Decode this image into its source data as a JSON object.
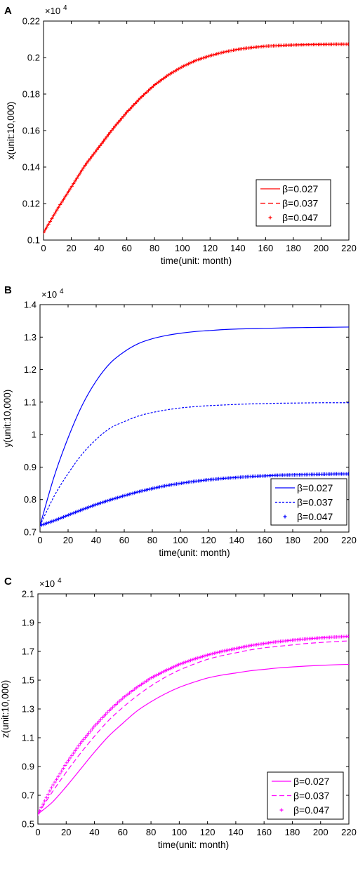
{
  "chart_data": [
    {
      "panel_label": "A",
      "type": "line",
      "exponent": "×10",
      "exponent_power": "4",
      "xlabel": "time(unit: month)",
      "ylabel": "x(unit:10,000)",
      "xlim": [
        0,
        220
      ],
      "ylim": [
        0.1,
        0.22
      ],
      "xticks": [
        0,
        20,
        40,
        60,
        80,
        100,
        120,
        140,
        160,
        180,
        200,
        220
      ],
      "yticks": [
        0.1,
        0.12,
        0.14,
        0.16,
        0.18,
        0.2,
        0.22
      ],
      "legend_position": "bottom-right",
      "color": "#ff0000",
      "x": [
        0,
        10,
        20,
        30,
        40,
        50,
        60,
        70,
        80,
        90,
        100,
        110,
        120,
        130,
        140,
        150,
        160,
        170,
        180,
        190,
        200,
        210,
        220
      ],
      "series": [
        {
          "name": "β=0.027",
          "style": "solid",
          "values": [
            0.104,
            0.117,
            0.129,
            0.141,
            0.151,
            0.161,
            0.17,
            0.178,
            0.185,
            0.1905,
            0.195,
            0.1985,
            0.201,
            0.203,
            0.2045,
            0.2055,
            0.2062,
            0.2066,
            0.2069,
            0.2071,
            0.2072,
            0.2073,
            0.2073
          ]
        },
        {
          "name": "β=0.037",
          "style": "dashed",
          "values": [
            0.104,
            0.117,
            0.129,
            0.141,
            0.151,
            0.161,
            0.17,
            0.178,
            0.185,
            0.1905,
            0.195,
            0.1985,
            0.201,
            0.203,
            0.2045,
            0.2055,
            0.2062,
            0.2066,
            0.2069,
            0.2071,
            0.2072,
            0.2073,
            0.2073
          ]
        },
        {
          "name": "β=0.047",
          "style": "plus",
          "values": [
            0.104,
            0.117,
            0.129,
            0.141,
            0.151,
            0.161,
            0.17,
            0.178,
            0.185,
            0.1905,
            0.195,
            0.1985,
            0.201,
            0.203,
            0.2045,
            0.2055,
            0.2062,
            0.2066,
            0.2069,
            0.2071,
            0.2072,
            0.2073,
            0.2073
          ]
        }
      ]
    },
    {
      "panel_label": "B",
      "type": "line",
      "exponent": "×10",
      "exponent_power": "4",
      "xlabel": "time(unit: month)",
      "ylabel": "y(unit:10,000)",
      "xlim": [
        0,
        220
      ],
      "ylim": [
        0.7,
        1.4
      ],
      "xticks": [
        0,
        20,
        40,
        60,
        80,
        100,
        120,
        140,
        160,
        180,
        200,
        220
      ],
      "yticks": [
        0.7,
        0.8,
        0.9,
        1,
        1.1,
        1.2,
        1.3,
        1.4
      ],
      "legend_position": "bottom-right",
      "color": "#0000ff",
      "x": [
        0,
        10,
        20,
        30,
        40,
        50,
        60,
        70,
        80,
        90,
        100,
        110,
        120,
        130,
        140,
        150,
        160,
        170,
        180,
        190,
        200,
        210,
        220
      ],
      "series": [
        {
          "name": "β=0.027",
          "style": "solid",
          "values": [
            0.72,
            0.87,
            0.99,
            1.09,
            1.165,
            1.22,
            1.255,
            1.28,
            1.295,
            1.305,
            1.312,
            1.317,
            1.32,
            1.323,
            1.325,
            1.326,
            1.327,
            1.328,
            1.329,
            1.3295,
            1.33,
            1.3305,
            1.331
          ]
        },
        {
          "name": "β=0.037",
          "style": "dashed",
          "values": [
            0.72,
            0.81,
            0.88,
            0.94,
            0.985,
            1.02,
            1.04,
            1.057,
            1.068,
            1.076,
            1.082,
            1.086,
            1.089,
            1.091,
            1.093,
            1.0945,
            1.0955,
            1.0965,
            1.097,
            1.0975,
            1.098,
            1.098,
            1.098
          ]
        },
        {
          "name": "β=0.047",
          "style": "plus",
          "values": [
            0.72,
            0.735,
            0.752,
            0.769,
            0.785,
            0.799,
            0.812,
            0.824,
            0.834,
            0.843,
            0.85,
            0.856,
            0.861,
            0.865,
            0.868,
            0.871,
            0.873,
            0.875,
            0.876,
            0.877,
            0.878,
            0.879,
            0.879
          ]
        }
      ]
    },
    {
      "panel_label": "C",
      "type": "line",
      "exponent": "×10",
      "exponent_power": "4",
      "xlabel": "time(unit: month)",
      "ylabel": "z(unit:10,000)",
      "xlim": [
        0,
        220
      ],
      "ylim": [
        0.5,
        2.1
      ],
      "xticks": [
        0,
        20,
        40,
        60,
        80,
        100,
        120,
        140,
        160,
        180,
        200,
        220
      ],
      "yticks": [
        0.5,
        0.7,
        0.9,
        1.1,
        1.3,
        1.5,
        1.7,
        1.9,
        2.1
      ],
      "legend_position": "bottom-right",
      "color": "#ff00ff",
      "x": [
        0,
        10,
        20,
        30,
        40,
        50,
        60,
        70,
        80,
        90,
        100,
        110,
        120,
        130,
        140,
        150,
        160,
        170,
        180,
        190,
        200,
        210,
        220
      ],
      "series": [
        {
          "name": "β=0.027",
          "style": "solid",
          "values": [
            0.57,
            0.65,
            0.76,
            0.88,
            1.0,
            1.11,
            1.2,
            1.285,
            1.35,
            1.405,
            1.45,
            1.485,
            1.515,
            1.535,
            1.55,
            1.565,
            1.575,
            1.585,
            1.592,
            1.598,
            1.603,
            1.607,
            1.61
          ]
        },
        {
          "name": "β=0.037",
          "style": "dashed",
          "values": [
            0.57,
            0.72,
            0.86,
            0.99,
            1.11,
            1.22,
            1.31,
            1.39,
            1.46,
            1.52,
            1.57,
            1.61,
            1.645,
            1.67,
            1.69,
            1.71,
            1.725,
            1.735,
            1.745,
            1.755,
            1.762,
            1.768,
            1.773
          ]
        },
        {
          "name": "β=0.047",
          "style": "plus",
          "values": [
            0.57,
            0.76,
            0.92,
            1.06,
            1.18,
            1.285,
            1.375,
            1.45,
            1.515,
            1.565,
            1.61,
            1.645,
            1.675,
            1.7,
            1.72,
            1.74,
            1.755,
            1.768,
            1.778,
            1.787,
            1.794,
            1.8,
            1.805
          ]
        }
      ]
    }
  ]
}
